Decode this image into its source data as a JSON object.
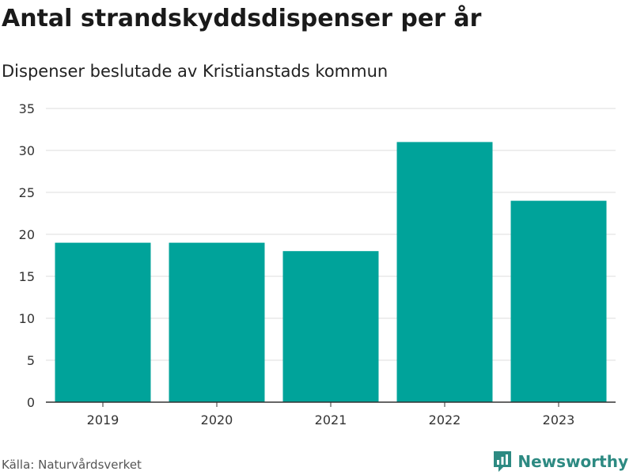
{
  "header": {
    "title": "Antal strandskyddsdispenser per år",
    "subtitle": "Dispenser beslutade av Kristianstads kommun"
  },
  "footer": {
    "source": "Källa: Naturvårdsverket",
    "brand": "Newsworthy",
    "brand_icon": "bar-chart-logo-icon"
  },
  "colors": {
    "bar": "#00a39a",
    "grid": "#dddddd",
    "axis": "#333333",
    "brand": "#2d8a82"
  },
  "chart_data": {
    "type": "bar",
    "title": "Antal strandskyddsdispenser per år",
    "subtitle": "Dispenser beslutade av Kristianstads kommun",
    "categories": [
      "2019",
      "2020",
      "2021",
      "2022",
      "2023"
    ],
    "values": [
      19,
      19,
      18,
      31,
      24
    ],
    "xlabel": "",
    "ylabel": "",
    "ylim": [
      0,
      35
    ],
    "yticks": [
      0,
      5,
      10,
      15,
      20,
      25,
      30,
      35
    ],
    "grid": true,
    "legend": "none"
  }
}
